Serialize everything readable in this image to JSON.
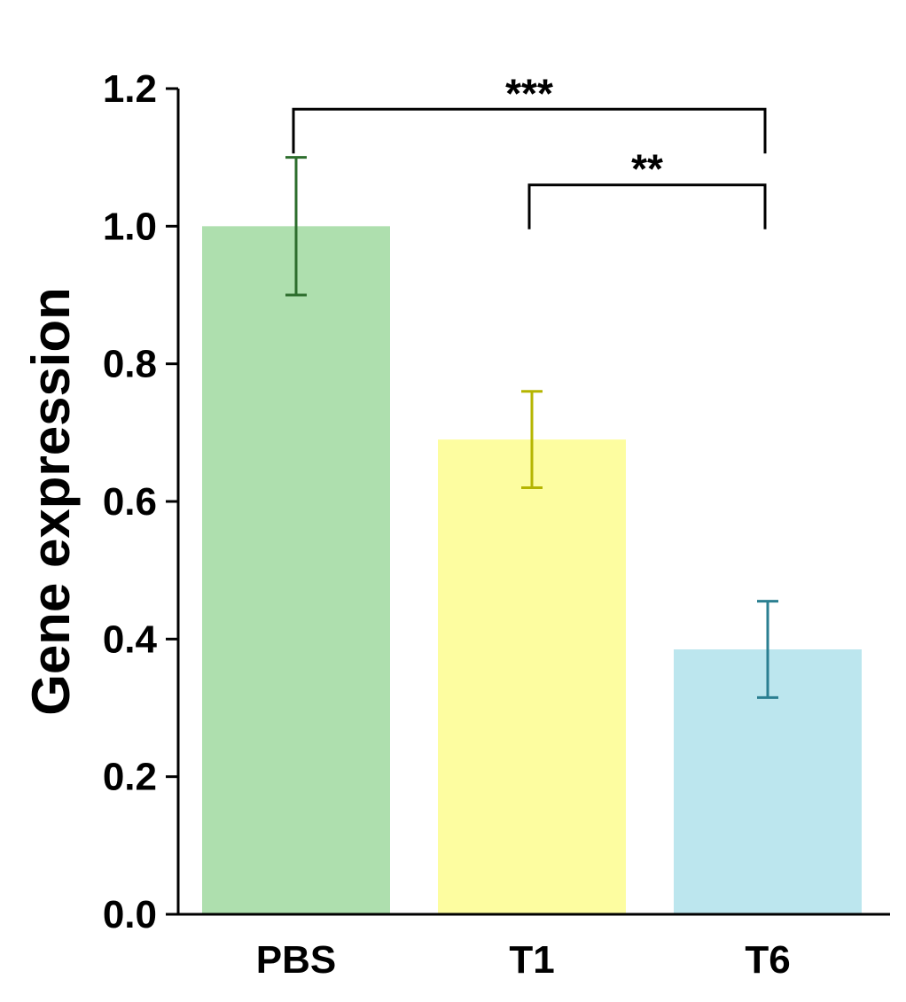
{
  "chart_data": {
    "type": "bar",
    "title": "",
    "xlabel": "",
    "ylabel": "Gene expression",
    "ylim": [
      0,
      1.2
    ],
    "yticks": [
      "0.0",
      "0.2",
      "0.4",
      "0.6",
      "0.8",
      "1.0",
      "1.2"
    ],
    "categories": [
      "PBS",
      "T1",
      "T6"
    ],
    "values": [
      1.0,
      0.69,
      0.385
    ],
    "errors": [
      0.1,
      0.07,
      0.07
    ],
    "bar_colors": [
      "#aedfae",
      "#fdfda0",
      "#bce6ee"
    ],
    "error_colors": [
      "#2d6e2d",
      "#b5b500",
      "#2b7f91"
    ],
    "significance": [
      {
        "from": "PBS",
        "to": "T6",
        "label": "***",
        "level": 1.17
      },
      {
        "from": "T1",
        "to": "T6",
        "label": "**",
        "level": 1.06
      }
    ]
  }
}
